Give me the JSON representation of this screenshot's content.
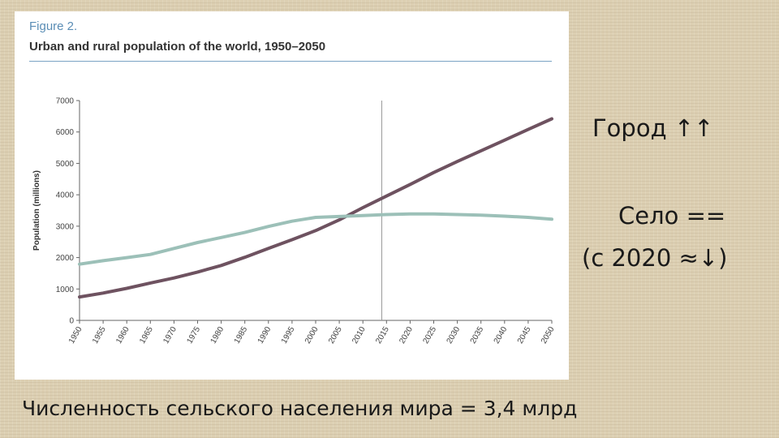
{
  "figure": {
    "label": "Figure 2.",
    "title": "Urban and rural population of the world, 1950–2050"
  },
  "notes": {
    "urban": "Город ↑↑",
    "rural_line1": "Село ==",
    "rural_line2": "(с 2020 ≈↓)",
    "bottom": "Численность сельского населения мира = 3,4 млрд"
  },
  "colors": {
    "urban": "#6e5260",
    "rural": "#9cc0b8",
    "marker": "#999999"
  },
  "chart_data": {
    "type": "line",
    "title": "Urban and rural population of the world, 1950–2050",
    "xlabel": "",
    "ylabel": "Population (millions)",
    "xlim": [
      1950,
      2050
    ],
    "ylim": [
      0,
      7000
    ],
    "xticks": [
      1950,
      1955,
      1960,
      1965,
      1970,
      1975,
      1980,
      1985,
      1990,
      1995,
      2000,
      2005,
      2010,
      2015,
      2020,
      2025,
      2030,
      2035,
      2040,
      2045,
      2050
    ],
    "yticks": [
      0,
      1000,
      2000,
      3000,
      4000,
      5000,
      6000,
      7000
    ],
    "vline_x": 2014,
    "grid": false,
    "x": [
      1950,
      1955,
      1960,
      1965,
      1970,
      1975,
      1980,
      1985,
      1990,
      1995,
      2000,
      2005,
      2010,
      2015,
      2020,
      2025,
      2030,
      2035,
      2040,
      2045,
      2050
    ],
    "series": [
      {
        "key": "urban",
        "values": [
          746,
          870,
          1020,
          1190,
          1350,
          1540,
          1750,
          2010,
          2290,
          2570,
          2860,
          3200,
          3590,
          3960,
          4330,
          4710,
          5060,
          5400,
          5740,
          6080,
          6420
        ]
      },
      {
        "key": "rural",
        "values": [
          1790,
          1900,
          2000,
          2100,
          2290,
          2480,
          2640,
          2800,
          2990,
          3160,
          3280,
          3310,
          3340,
          3370,
          3390,
          3390,
          3370,
          3350,
          3320,
          3280,
          3220
        ]
      }
    ]
  }
}
